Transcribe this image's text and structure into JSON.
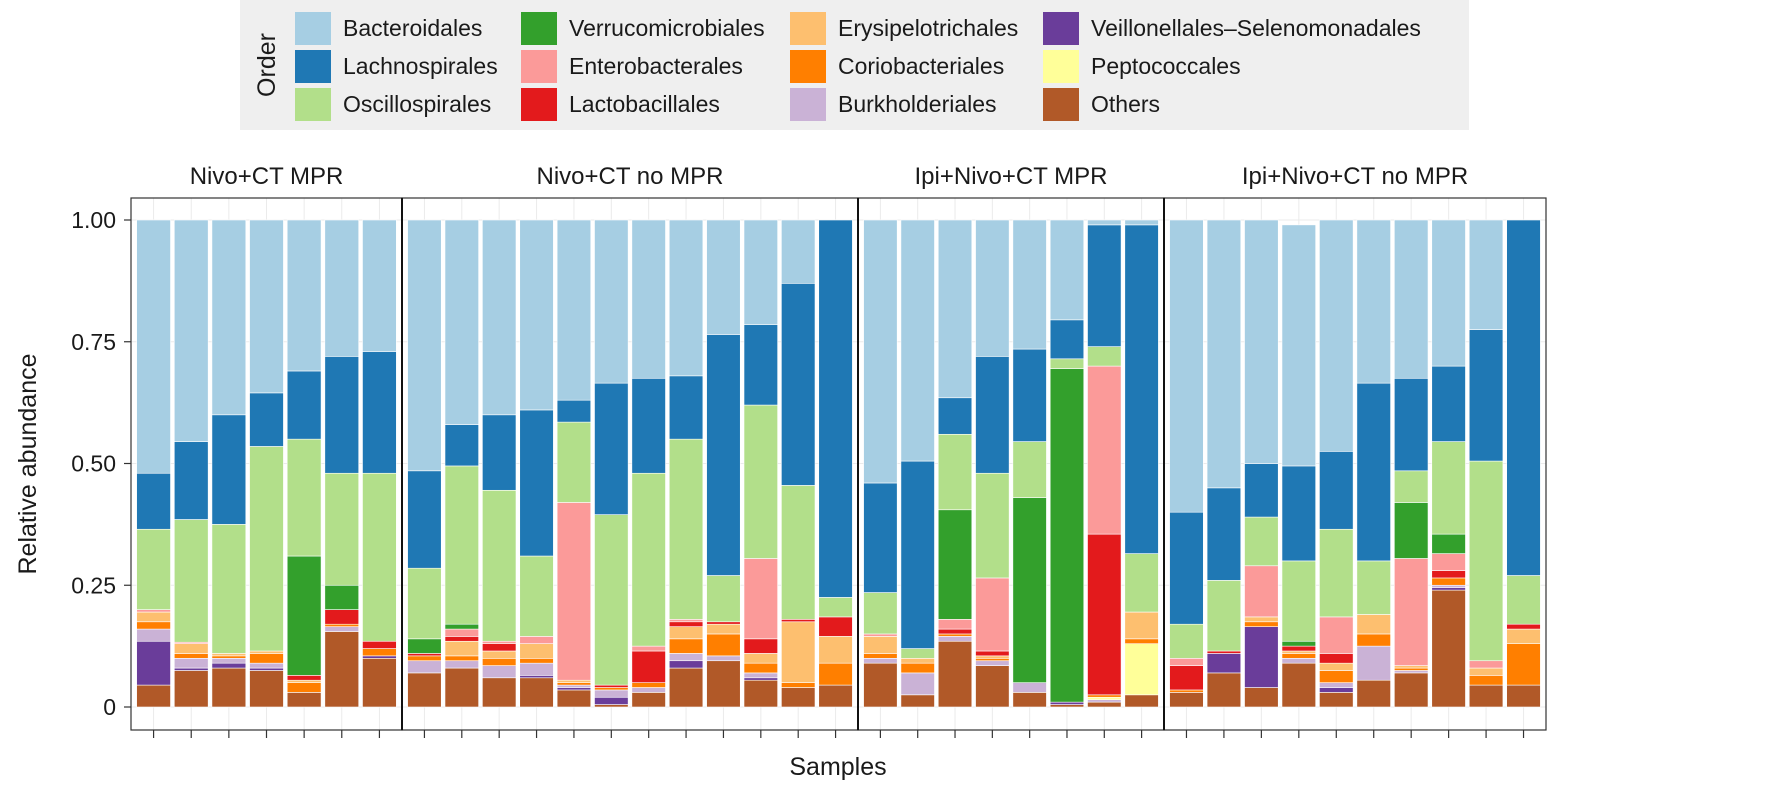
{
  "chart_data": {
    "type": "bar",
    "stacked": true,
    "xlabel": "Samples",
    "ylabel": "Relative abundance",
    "ylim": [
      0,
      1
    ],
    "yticks": [
      0,
      0.25,
      0.5,
      0.75,
      1.0
    ],
    "ytick_labels": [
      "0",
      "0.25",
      "0.50",
      "0.75",
      "1.00"
    ],
    "legend_title": "Order",
    "orders": [
      {
        "name": "Bacteroidales",
        "color": "#a6cee3"
      },
      {
        "name": "Lachnospirales",
        "color": "#1f78b4"
      },
      {
        "name": "Oscillospirales",
        "color": "#b2df8a"
      },
      {
        "name": "Verrucomicrobiales",
        "color": "#33a02c"
      },
      {
        "name": "Enterobacterales",
        "color": "#fb9a99"
      },
      {
        "name": "Lactobacillales",
        "color": "#e31a1c"
      },
      {
        "name": "Erysipelotrichales",
        "color": "#fdbf6f"
      },
      {
        "name": "Coriobacteriales",
        "color": "#ff7f00"
      },
      {
        "name": "Burkholderiales",
        "color": "#cab2d6"
      },
      {
        "name": "Veillonellales–Selenomonadales",
        "color": "#6a3d9a"
      },
      {
        "name": "Peptococcales",
        "color": "#ffff99"
      },
      {
        "name": "Others",
        "color": "#b15928"
      }
    ],
    "stack_order_bottom_to_top": [
      "Others",
      "Veillonellales–Selenomonadales",
      "Burkholderiales",
      "Peptococcales",
      "Coriobacteriales",
      "Erysipelotrichales",
      "Lactobacillales",
      "Enterobacterales",
      "Verrucomicrobiales",
      "Oscillospirales",
      "Lachnospirales",
      "Bacteroidales"
    ],
    "panels": [
      {
        "title": "Nivo+CT MPR",
        "samples": [
          {
            "Others": 0.045,
            "Veillonellales–Selenomonadales": 0.09,
            "Burkholderiales": 0.025,
            "Coriobacteriales": 0.015,
            "Erysipelotrichales": 0.02,
            "Enterobacterales": 0.005,
            "Oscillospirales": 0.165,
            "Lachnospirales": 0.115,
            "Bacteroidales": 0.52
          },
          {
            "Others": 0.075,
            "Veillonellales–Selenomonadales": 0.005,
            "Burkholderiales": 0.02,
            "Coriobacteriales": 0.01,
            "Erysipelotrichales": 0.02,
            "Enterobacterales": 0.003,
            "Oscillospirales": 0.252,
            "Lachnospirales": 0.16,
            "Bacteroidales": 0.455
          },
          {
            "Others": 0.08,
            "Veillonellales–Selenomonadales": 0.01,
            "Burkholderiales": 0.01,
            "Coriobacteriales": 0.005,
            "Erysipelotrichales": 0.005,
            "Oscillospirales": 0.265,
            "Lachnospirales": 0.225,
            "Bacteroidales": 0.4
          },
          {
            "Others": 0.075,
            "Veillonellales–Selenomonadales": 0.005,
            "Burkholderiales": 0.01,
            "Coriobacteriales": 0.02,
            "Erysipelotrichales": 0.005,
            "Oscillospirales": 0.42,
            "Lachnospirales": 0.11,
            "Bacteroidales": 0.355
          },
          {
            "Others": 0.03,
            "Coriobacteriales": 0.02,
            "Erysipelotrichales": 0.005,
            "Lactobacillales": 0.01,
            "Verrucomicrobiales": 0.245,
            "Oscillospirales": 0.24,
            "Lachnospirales": 0.14,
            "Bacteroidales": 0.31
          },
          {
            "Others": 0.155,
            "Burkholderiales": 0.01,
            "Coriobacteriales": 0.005,
            "Lactobacillales": 0.03,
            "Verrucomicrobiales": 0.05,
            "Oscillospirales": 0.23,
            "Lachnospirales": 0.24,
            "Bacteroidales": 0.28
          },
          {
            "Others": 0.1,
            "Veillonellales–Selenomonadales": 0.005,
            "Coriobacteriales": 0.015,
            "Lactobacillales": 0.015,
            "Oscillospirales": 0.345,
            "Lachnospirales": 0.25,
            "Bacteroidales": 0.27
          }
        ]
      },
      {
        "title": "Nivo+CT no MPR",
        "samples": [
          {
            "Others": 0.07,
            "Burkholderiales": 0.025,
            "Coriobacteriales": 0.01,
            "Lactobacillales": 0.005,
            "Verrucomicrobiales": 0.03,
            "Oscillospirales": 0.145,
            "Lachnospirales": 0.2,
            "Bacteroidales": 0.515
          },
          {
            "Others": 0.08,
            "Burkholderiales": 0.015,
            "Coriobacteriales": 0.01,
            "Erysipelotrichales": 0.03,
            "Enterobacterales": 0.015,
            "Lactobacillales": 0.01,
            "Verrucomicrobiales": 0.01,
            "Oscillospirales": 0.325,
            "Lachnospirales": 0.085,
            "Bacteroidales": 0.42
          },
          {
            "Others": 0.06,
            "Burkholderiales": 0.025,
            "Coriobacteriales": 0.015,
            "Erysipelotrichales": 0.015,
            "Lactobacillales": 0.015,
            "Enterobacterales": 0.005,
            "Oscillospirales": 0.31,
            "Lachnospirales": 0.155,
            "Bacteroidales": 0.4
          },
          {
            "Others": 0.06,
            "Veillonellales–Selenomonadales": 0.005,
            "Burkholderiales": 0.025,
            "Coriobacteriales": 0.01,
            "Erysipelotrichales": 0.03,
            "Enterobacterales": 0.015,
            "Oscillospirales": 0.165,
            "Lachnospirales": 0.3,
            "Bacteroidales": 0.39
          },
          {
            "Others": 0.035,
            "Veillonellales–Selenomonadales": 0.005,
            "Burkholderiales": 0.005,
            "Coriobacteriales": 0.005,
            "Erysipelotrichales": 0.005,
            "Enterobacterales": 0.365,
            "Oscillospirales": 0.165,
            "Lachnospirales": 0.045,
            "Bacteroidales": 0.37
          },
          {
            "Others": 0.005,
            "Veillonellales–Selenomonadales": 0.015,
            "Burkholderiales": 0.015,
            "Coriobacteriales": 0.005,
            "Lactobacillales": 0.005,
            "Oscillospirales": 0.35,
            "Lachnospirales": 0.27,
            "Bacteroidales": 0.335
          },
          {
            "Others": 0.03,
            "Burkholderiales": 0.01,
            "Coriobacteriales": 0.01,
            "Lactobacillales": 0.065,
            "Enterobacterales": 0.01,
            "Oscillospirales": 0.355,
            "Lachnospirales": 0.195,
            "Bacteroidales": 0.325
          },
          {
            "Others": 0.08,
            "Veillonellales–Selenomonadales": 0.015,
            "Burkholderiales": 0.015,
            "Coriobacteriales": 0.03,
            "Erysipelotrichales": 0.025,
            "Lactobacillales": 0.01,
            "Enterobacterales": 0.005,
            "Oscillospirales": 0.37,
            "Lachnospirales": 0.13,
            "Bacteroidales": 0.32
          },
          {
            "Others": 0.095,
            "Burkholderiales": 0.01,
            "Coriobacteriales": 0.045,
            "Erysipelotrichales": 0.02,
            "Lactobacillales": 0.005,
            "Oscillospirales": 0.095,
            "Lachnospirales": 0.495,
            "Bacteroidales": 0.235
          },
          {
            "Others": 0.055,
            "Veillonellales–Selenomonadales": 0.005,
            "Burkholderiales": 0.01,
            "Coriobacteriales": 0.02,
            "Erysipelotrichales": 0.02,
            "Lactobacillales": 0.03,
            "Enterobacterales": 0.165,
            "Oscillospirales": 0.315,
            "Lachnospirales": 0.165,
            "Bacteroidales": 0.215
          },
          {
            "Others": 0.04,
            "Coriobacteriales": 0.01,
            "Erysipelotrichales": 0.125,
            "Lactobacillales": 0.005,
            "Oscillospirales": 0.275,
            "Lachnospirales": 0.415,
            "Bacteroidales": 0.13
          },
          {
            "Others": 0.045,
            "Coriobacteriales": 0.045,
            "Erysipelotrichales": 0.055,
            "Lactobacillales": 0.04,
            "Oscillospirales": 0.04,
            "Lachnospirales": 0.775
          }
        ]
      },
      {
        "title": "Ipi+Nivo+CT MPR",
        "samples": [
          {
            "Others": 0.09,
            "Burkholderiales": 0.01,
            "Coriobacteriales": 0.01,
            "Erysipelotrichales": 0.035,
            "Enterobacterales": 0.005,
            "Oscillospirales": 0.085,
            "Lachnospirales": 0.225,
            "Bacteroidales": 0.54
          },
          {
            "Others": 0.025,
            "Burkholderiales": 0.045,
            "Coriobacteriales": 0.02,
            "Erysipelotrichales": 0.01,
            "Oscillospirales": 0.02,
            "Lachnospirales": 0.385,
            "Bacteroidales": 0.495
          },
          {
            "Others": 0.135,
            "Burkholderiales": 0.01,
            "Coriobacteriales": 0.005,
            "Lactobacillales": 0.01,
            "Enterobacterales": 0.02,
            "Verrucomicrobiales": 0.225,
            "Oscillospirales": 0.155,
            "Lachnospirales": 0.075,
            "Bacteroidales": 0.365
          },
          {
            "Others": 0.085,
            "Burkholderiales": 0.01,
            "Coriobacteriales": 0.005,
            "Erysipelotrichales": 0.005,
            "Lactobacillales": 0.01,
            "Enterobacterales": 0.15,
            "Oscillospirales": 0.215,
            "Lachnospirales": 0.24,
            "Bacteroidales": 0.28
          },
          {
            "Others": 0.03,
            "Burkholderiales": 0.02,
            "Verrucomicrobiales": 0.38,
            "Oscillospirales": 0.115,
            "Lachnospirales": 0.19,
            "Bacteroidales": 0.265
          },
          {
            "Others": 0.005,
            "Veillonellales–Selenomonadales": 0.005,
            "Verrucomicrobiales": 0.685,
            "Oscillospirales": 0.02,
            "Lachnospirales": 0.08,
            "Bacteroidales": 0.205
          },
          {
            "Others": 0.01,
            "Burkholderiales": 0.005,
            "Peptococcales": 0.005,
            "Coriobacteriales": 0.005,
            "Lactobacillales": 0.33,
            "Enterobacterales": 0.345,
            "Oscillospirales": 0.04,
            "Lachnospirales": 0.25,
            "Bacteroidales": 0.01
          },
          {
            "Others": 0.025,
            "Peptococcales": 0.105,
            "Coriobacteriales": 0.01,
            "Erysipelotrichales": 0.055,
            "Oscillospirales": 0.12,
            "Lachnospirales": 0.675,
            "Bacteroidales": 0.01
          }
        ]
      },
      {
        "title": "Ipi+Nivo+CT no MPR",
        "samples": [
          {
            "Others": 0.03,
            "Coriobacteriales": 0.005,
            "Lactobacillales": 0.05,
            "Enterobacterales": 0.015,
            "Oscillospirales": 0.07,
            "Lachnospirales": 0.23,
            "Bacteroidales": 0.6
          },
          {
            "Others": 0.07,
            "Veillonellales–Selenomonadales": 0.04,
            "Lactobacillales": 0.005,
            "Oscillospirales": 0.145,
            "Lachnospirales": 0.19,
            "Bacteroidales": 0.55
          },
          {
            "Others": 0.04,
            "Veillonellales–Selenomonadales": 0.125,
            "Coriobacteriales": 0.01,
            "Erysipelotrichales": 0.01,
            "Enterobacterales": 0.105,
            "Oscillospirales": 0.1,
            "Lachnospirales": 0.11,
            "Bacteroidales": 0.5
          },
          {
            "Others": 0.09,
            "Burkholderiales": 0.01,
            "Coriobacteriales": 0.01,
            "Erysipelotrichales": 0.005,
            "Lactobacillales": 0.01,
            "Verrucomicrobiales": 0.01,
            "Oscillospirales": 0.165,
            "Lachnospirales": 0.195,
            "Bacteroidales": 0.495
          },
          {
            "Others": 0.03,
            "Veillonellales–Selenomonadales": 0.01,
            "Burkholderiales": 0.01,
            "Coriobacteriales": 0.025,
            "Erysipelotrichales": 0.015,
            "Lactobacillales": 0.02,
            "Enterobacterales": 0.075,
            "Oscillospirales": 0.18,
            "Lachnospirales": 0.16,
            "Bacteroidales": 0.475
          },
          {
            "Others": 0.055,
            "Burkholderiales": 0.07,
            "Coriobacteriales": 0.025,
            "Erysipelotrichales": 0.04,
            "Oscillospirales": 0.11,
            "Lachnospirales": 0.365,
            "Bacteroidales": 0.335
          },
          {
            "Others": 0.07,
            "Burkholderiales": 0.005,
            "Coriobacteriales": 0.005,
            "Erysipelotrichales": 0.005,
            "Enterobacterales": 0.22,
            "Verrucomicrobiales": 0.115,
            "Oscillospirales": 0.065,
            "Lachnospirales": 0.19,
            "Bacteroidales": 0.325
          },
          {
            "Others": 0.24,
            "Veillonellales–Selenomonadales": 0.005,
            "Burkholderiales": 0.005,
            "Coriobacteriales": 0.015,
            "Lactobacillales": 0.015,
            "Enterobacterales": 0.035,
            "Verrucomicrobiales": 0.04,
            "Oscillospirales": 0.19,
            "Lachnospirales": 0.155,
            "Bacteroidales": 0.3
          },
          {
            "Others": 0.045,
            "Coriobacteriales": 0.02,
            "Erysipelotrichales": 0.015,
            "Enterobacterales": 0.015,
            "Oscillospirales": 0.41,
            "Lachnospirales": 0.27,
            "Bacteroidales": 0.225
          },
          {
            "Others": 0.045,
            "Coriobacteriales": 0.085,
            "Erysipelotrichales": 0.03,
            "Lactobacillales": 0.01,
            "Oscillospirales": 0.1,
            "Lachnospirales": 0.73
          }
        ]
      }
    ]
  }
}
